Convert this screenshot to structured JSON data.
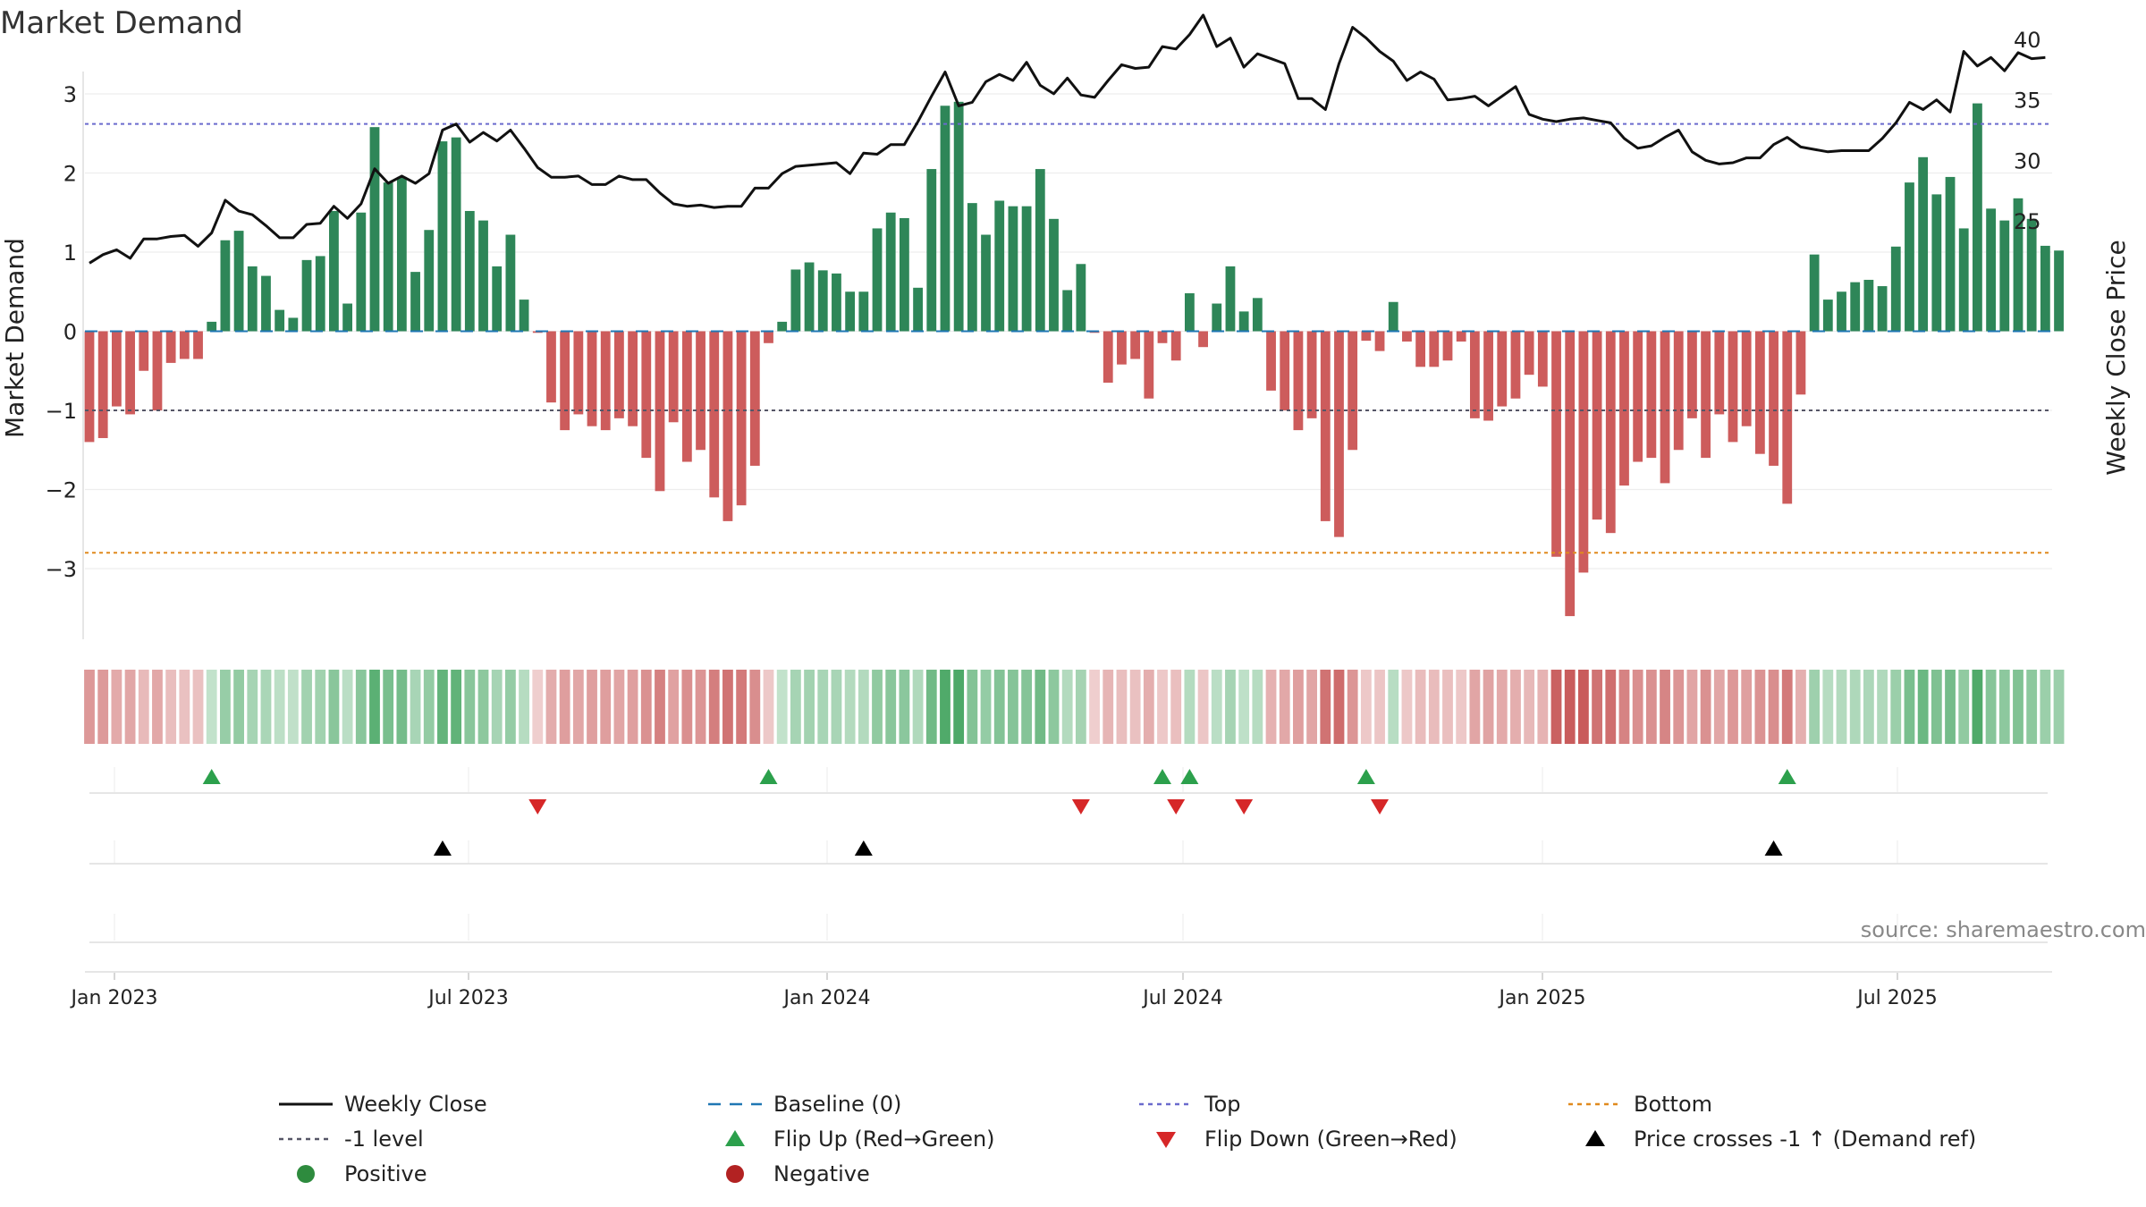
{
  "chart_data": {
    "type": "bar",
    "title": "Market Demand",
    "ylabel_left": "Market Demand",
    "ylabel_right": "Weekly Close Price",
    "source": "source: sharemaestro.com",
    "x_ticks": [
      "Jan 2023",
      "Jul 2023",
      "Jan 2024",
      "Jul 2024",
      "Jan 2025",
      "Jul 2025"
    ],
    "left_y": {
      "ticks": [
        -3,
        -2,
        -1,
        0,
        1,
        2,
        3
      ],
      "range": [
        -3.7,
        3.1
      ]
    },
    "right_y": {
      "ticks": [
        25,
        30,
        35,
        40
      ],
      "range": [
        20.6,
        43.9
      ]
    },
    "reference_lines": {
      "top": 2.62,
      "minus_one": -1.0,
      "bottom": -2.8,
      "baseline": 0
    },
    "series": [
      {
        "name": "Market Demand",
        "values": [
          -1.4,
          -1.35,
          -0.95,
          -1.05,
          -0.5,
          -1.0,
          -0.4,
          -0.35,
          -0.35,
          0.12,
          1.15,
          1.27,
          0.82,
          0.7,
          0.27,
          0.17,
          0.9,
          0.95,
          1.52,
          0.35,
          1.5,
          2.58,
          1.88,
          1.95,
          0.75,
          1.28,
          2.4,
          2.45,
          1.52,
          1.4,
          0.82,
          1.22,
          0.4,
          -0.02,
          -0.9,
          -1.25,
          -1.05,
          -1.2,
          -1.25,
          -1.1,
          -1.2,
          -1.6,
          -2.02,
          -1.15,
          -1.65,
          -1.5,
          -2.1,
          -2.4,
          -2.2,
          -1.7,
          -0.15,
          0.12,
          0.78,
          0.87,
          0.77,
          0.73,
          0.5,
          0.5,
          1.3,
          1.5,
          1.43,
          0.55,
          2.05,
          2.85,
          2.9,
          1.62,
          1.22,
          1.65,
          1.58,
          1.58,
          2.05,
          1.42,
          0.52,
          0.85,
          -0.02,
          -0.65,
          -0.42,
          -0.35,
          -0.85,
          -0.15,
          -0.37,
          0.48,
          -0.2,
          0.35,
          0.82,
          0.25,
          0.42,
          -0.75,
          -1.0,
          -1.25,
          -1.1,
          -2.4,
          -2.6,
          -1.5,
          -0.12,
          -0.25,
          0.37,
          -0.13,
          -0.45,
          -0.45,
          -0.37,
          -0.13,
          -1.1,
          -1.13,
          -0.95,
          -0.85,
          -0.55,
          -0.7,
          -2.85,
          -3.6,
          -3.05,
          -2.38,
          -2.55,
          -1.95,
          -1.65,
          -1.6,
          -1.92,
          -1.5,
          -1.1,
          -1.6,
          -1.05,
          -1.4,
          -1.2,
          -1.55,
          -1.7,
          -2.18,
          -0.8,
          0.97,
          0.4,
          0.5,
          0.62,
          0.65,
          0.57,
          1.07,
          1.88,
          2.2,
          1.73,
          1.95,
          1.3,
          2.88,
          1.55,
          1.4,
          1.68,
          1.42,
          1.08,
          1.02
        ]
      },
      {
        "name": "Weekly Close",
        "values": [
          21.5,
          22.2,
          22.6,
          21.9,
          23.5,
          23.5,
          23.7,
          23.8,
          22.9,
          24.0,
          26.7,
          25.8,
          25.5,
          24.6,
          23.6,
          23.6,
          24.7,
          24.8,
          26.2,
          25.2,
          26.4,
          29.3,
          28.1,
          28.7,
          28.1,
          28.9,
          32.5,
          33.0,
          31.5,
          32.3,
          31.6,
          32.5,
          31.0,
          29.4,
          28.6,
          28.6,
          28.7,
          28.0,
          28.0,
          28.7,
          28.4,
          28.4,
          27.3,
          26.4,
          26.2,
          26.3,
          26.1,
          26.2,
          26.2,
          27.7,
          27.7,
          28.9,
          29.5,
          29.6,
          29.7,
          29.8,
          28.9,
          30.6,
          30.5,
          31.3,
          31.3,
          33.2,
          35.3,
          37.3,
          34.5,
          34.8,
          36.5,
          37.1,
          36.6,
          38.1,
          36.2,
          35.5,
          36.8,
          35.4,
          35.2,
          36.6,
          37.9,
          37.6,
          37.7,
          39.4,
          39.2,
          40.4,
          42.0,
          39.4,
          40.1,
          37.7,
          38.8,
          38.4,
          38.0,
          35.1,
          35.1,
          34.2,
          38.0,
          41.0,
          40.1,
          39.0,
          38.2,
          36.6,
          37.3,
          36.7,
          35.0,
          35.1,
          35.3,
          34.5,
          35.3,
          36.1,
          33.8,
          33.4,
          33.2,
          33.4,
          33.5,
          33.3,
          33.1,
          31.8,
          31.0,
          31.2,
          31.9,
          32.5,
          30.7,
          30.0,
          29.7,
          29.8,
          30.2,
          30.2,
          31.3,
          31.9,
          31.1,
          30.9,
          30.7,
          30.8,
          30.8,
          30.8,
          31.8,
          33.1,
          34.8,
          34.2,
          35.0,
          34.0,
          39.0,
          37.8,
          38.5,
          37.4,
          38.9,
          38.4,
          38.5
        ]
      }
    ],
    "flip_up": [
      9,
      50,
      79,
      81,
      94,
      125
    ],
    "flip_down": [
      33,
      73,
      80,
      85,
      95
    ],
    "price_cross": [
      26,
      57,
      124
    ],
    "legend": [
      {
        "key": "close",
        "label": "Weekly Close",
        "color": "#111111"
      },
      {
        "key": "baseline",
        "label": "Baseline (0)",
        "color": "#1f77b4"
      },
      {
        "key": "top",
        "label": "Top",
        "color": "#6a6acd"
      },
      {
        "key": "bottom",
        "label": "Bottom",
        "color": "#e08a1e"
      },
      {
        "key": "minus1",
        "label": "-1 level",
        "color": "#555566"
      },
      {
        "key": "flipup",
        "label": "Flip Up (Red→Green)",
        "color": "#2ca04c"
      },
      {
        "key": "flipdown",
        "label": "Flip Down (Green→Red)",
        "color": "#d62728"
      },
      {
        "key": "cross",
        "label": "Price crosses -1 ↑ (Demand ref)",
        "color": "#000000"
      },
      {
        "key": "positive",
        "label": "Positive",
        "color": "#2e8b3e"
      },
      {
        "key": "negative",
        "label": "Negative",
        "color": "#b22222"
      }
    ],
    "colors": {
      "pos_bar": "#2e8658",
      "neg_bar": "#cd5c5c"
    }
  }
}
